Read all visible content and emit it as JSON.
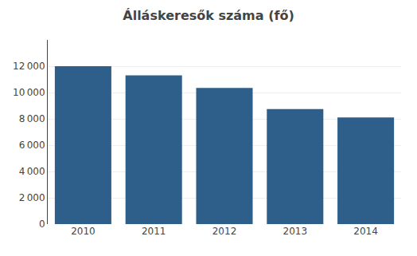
{
  "chart_data": {
    "type": "bar",
    "title": "Álláskeresők száma (fő)",
    "categories": [
      "2010",
      "2011",
      "2012",
      "2013",
      "2014"
    ],
    "values": [
      12000,
      11300,
      10350,
      8750,
      8100
    ],
    "color": "#2E5F8A",
    "ylim": [
      0,
      14000
    ],
    "yticks": [
      0,
      {
        "value": 2000,
        "label": "2 000"
      },
      {
        "value": 4000,
        "label": "4 000"
      },
      {
        "value": 6000,
        "label": "6 000"
      },
      {
        "value": 8000,
        "label": "8 000"
      },
      {
        "value": 10000,
        "label": "10 000"
      },
      {
        "value": 12000,
        "label": "12 000"
      }
    ],
    "grid": true
  }
}
